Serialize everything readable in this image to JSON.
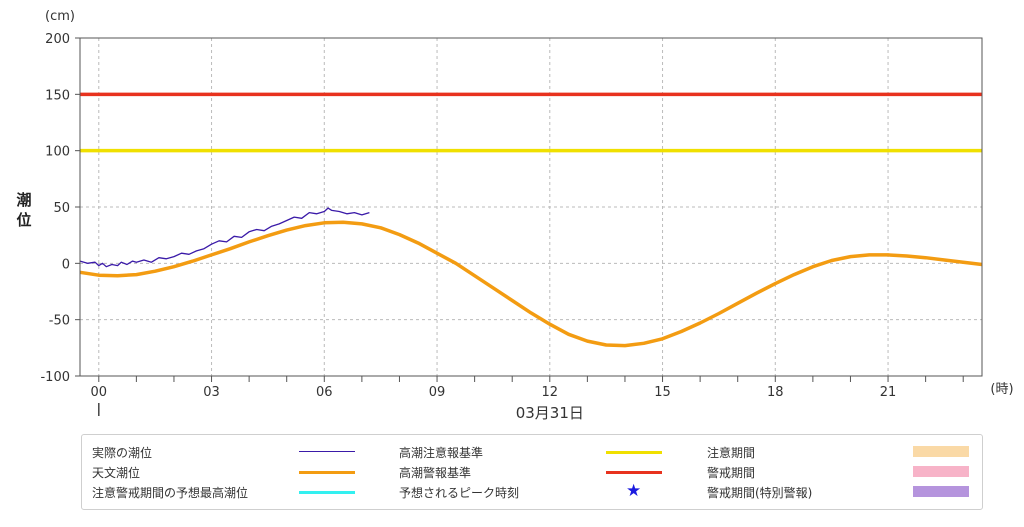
{
  "chart_data": {
    "type": "line",
    "unit_label": "(cm)",
    "ylabel": "潮位",
    "xunit_label": "(時)",
    "date_label": "03月31日",
    "ylim": [
      -100,
      200
    ],
    "yticks": [
      -100,
      -50,
      0,
      50,
      100,
      150,
      200
    ],
    "xlim": [
      -0.5,
      23.5
    ],
    "xticks": [
      0,
      3,
      6,
      9,
      12,
      15,
      18,
      21
    ],
    "xtick_labels": [
      "00",
      "03",
      "06",
      "09",
      "12",
      "15",
      "18",
      "21"
    ],
    "grid": true,
    "series": [
      {
        "name": "天文潮位",
        "color": "#f39c12",
        "x": [
          -0.5,
          0,
          0.5,
          1,
          1.5,
          2,
          2.5,
          3,
          3.5,
          4,
          4.5,
          5,
          5.5,
          6,
          6.5,
          7,
          7.5,
          8,
          8.5,
          9,
          9.5,
          10,
          10.5,
          11,
          11.5,
          12,
          12.5,
          13,
          13.5,
          14,
          14.5,
          15,
          15.5,
          16,
          16.5,
          17,
          17.5,
          18,
          18.5,
          19,
          19.5,
          20,
          20.5,
          21,
          21.5,
          22,
          22.5,
          23,
          23.5
        ],
        "y": [
          -8,
          -10.5,
          -11,
          -10,
          -7,
          -3,
          2,
          7.5,
          13,
          19,
          24.5,
          29.5,
          33.5,
          36,
          36.5,
          35,
          31.5,
          25.5,
          18,
          9,
          0,
          -11,
          -22,
          -33,
          -44,
          -54,
          -63,
          -69,
          -72.5,
          -73,
          -71,
          -67,
          -60.5,
          -53,
          -44.5,
          -35.5,
          -26.5,
          -18,
          -10,
          -3,
          2.5,
          6,
          7.5,
          7.5,
          6.5,
          5,
          3,
          1,
          -1
        ]
      },
      {
        "name": "実際の潮位",
        "color": "#3a1aa8",
        "x": [
          -0.5,
          -0.3,
          -0.1,
          0,
          0.1,
          0.2,
          0.35,
          0.5,
          0.6,
          0.75,
          0.9,
          1,
          1.2,
          1.4,
          1.6,
          1.8,
          2,
          2.2,
          2.4,
          2.6,
          2.8,
          3,
          3.2,
          3.4,
          3.6,
          3.8,
          4,
          4.2,
          4.4,
          4.6,
          4.8,
          5,
          5.2,
          5.4,
          5.6,
          5.8,
          6,
          6.1,
          6.2,
          6.4,
          6.6,
          6.8,
          7,
          7.2
        ],
        "y": [
          2,
          0,
          1,
          -2,
          0,
          -3,
          -1,
          -2,
          1,
          -1,
          2,
          1,
          3,
          1,
          5,
          4,
          6,
          9,
          8,
          11,
          13,
          17,
          20,
          19,
          24,
          23,
          28,
          30,
          29,
          33,
          35,
          38,
          41,
          40,
          45,
          44,
          46,
          49,
          47,
          46,
          44,
          45,
          43,
          45
        ]
      }
    ],
    "reference_lines": [
      {
        "name": "高潮注意報基準",
        "value": 100,
        "color": "#f0e000"
      },
      {
        "name": "高潮警報基準",
        "value": 150,
        "color": "#e8321e"
      }
    ]
  },
  "legend": {
    "items": [
      {
        "label": "実際の潮位",
        "kind": "thin-line",
        "color": "#3a1aa8"
      },
      {
        "label": "高潮注意報基準",
        "kind": "line",
        "color": "#f0e000"
      },
      {
        "label": "注意期間",
        "kind": "box",
        "color": "#fad9a6"
      },
      {
        "label": "天文潮位",
        "kind": "line",
        "color": "#f39c12"
      },
      {
        "label": "高潮警報基準",
        "kind": "line",
        "color": "#e8321e"
      },
      {
        "label": "警戒期間",
        "kind": "box",
        "color": "#f7b3c8"
      },
      {
        "label": "注意警戒期間の予想最高潮位",
        "kind": "line",
        "color": "#33f0f0"
      },
      {
        "label": "予想されるピーク時刻",
        "kind": "star",
        "color": "#1a1adf"
      },
      {
        "label": "警戒期間(特別警報)",
        "kind": "box",
        "color": "#b594dd"
      }
    ]
  }
}
